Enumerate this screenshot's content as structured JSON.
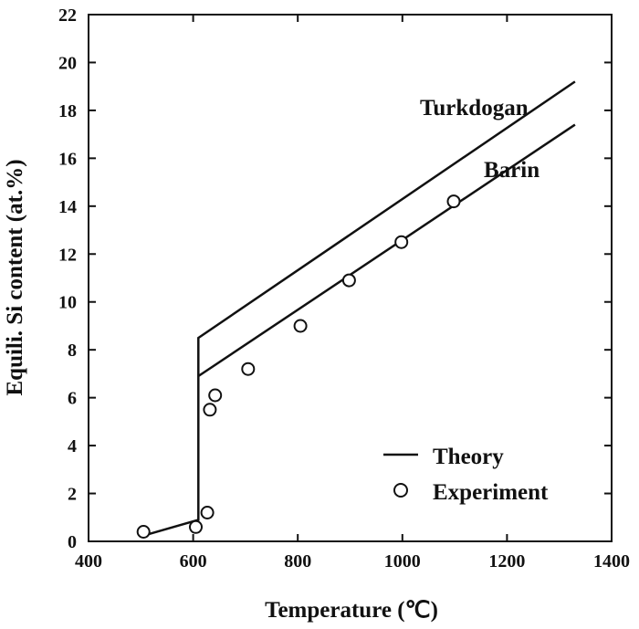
{
  "chart_data": {
    "type": "line",
    "xlabel": "Temperature (℃)",
    "ylabel": "Equili. Si content (at.%)",
    "xlim": [
      400,
      1400
    ],
    "ylim": [
      0,
      22
    ],
    "x_ticks": [
      "400",
      "600",
      "800",
      "1000",
      "1200",
      "1400"
    ],
    "y_ticks": [
      "0",
      "2",
      "4",
      "6",
      "8",
      "10",
      "12",
      "14",
      "16",
      "18",
      "20",
      "22"
    ],
    "grid": false,
    "legend_position": "bottom-right",
    "legend": {
      "line_label": "Theory",
      "marker_label": "Experiment"
    },
    "series": [
      {
        "name": "Theory",
        "label_text": "Turkdogan",
        "style": "line",
        "points": [
          [
            515,
            0.3
          ],
          [
            610,
            0.9
          ],
          [
            610,
            8.5
          ],
          [
            1330,
            19.2
          ]
        ]
      },
      {
        "name": "Theory",
        "label_text": "Barin",
        "style": "line",
        "points": [
          [
            610,
            6.9
          ],
          [
            1330,
            17.4
          ]
        ]
      },
      {
        "name": "Experiment",
        "style": "marker",
        "points": [
          [
            505,
            0.4
          ],
          [
            605,
            0.6
          ],
          [
            627,
            1.2
          ],
          [
            632,
            5.5
          ],
          [
            642,
            6.1
          ],
          [
            705,
            7.2
          ],
          [
            805,
            9.0
          ],
          [
            898,
            10.9
          ],
          [
            998,
            12.5
          ],
          [
            1098,
            14.2
          ]
        ]
      }
    ]
  },
  "colors": {
    "ink": "#111111",
    "background": "#ffffff"
  }
}
